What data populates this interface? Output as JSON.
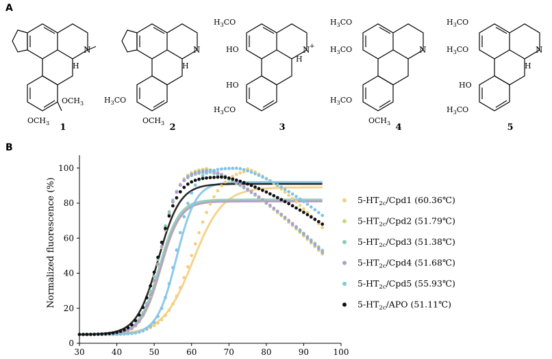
{
  "panels": {
    "a": "A",
    "b": "B"
  },
  "compounds": {
    "labels": [
      "1",
      "2",
      "3",
      "4",
      "5"
    ],
    "substituents": {
      "och3": "OCH",
      "h3co": "H",
      "h3co_tail": "CO",
      "sub3": "3",
      "ho": "HO",
      "n": "N",
      "h": "H",
      "plus": "+"
    }
  },
  "chart_data": {
    "type": "scatter",
    "title": "",
    "xlabel": "",
    "ylabel": "Normalized fluorescence (%)",
    "xlim": [
      30,
      100
    ],
    "ylim": [
      0,
      105
    ],
    "xticks": [
      30,
      40,
      50,
      60,
      70,
      80,
      90,
      100
    ],
    "yticks": [
      0,
      20,
      40,
      60,
      80,
      100
    ],
    "legend_position": "right",
    "series": [
      {
        "name": "5-HT2c/Cpd1 (60.36℃)",
        "prefix": "5-HT",
        "sub": "2c",
        "suffix": "/Cpd1 (60.36℃)",
        "color": "#f3cf7f",
        "tm": 60.36,
        "slope": 4.0,
        "plateau": 89,
        "peak_x": 74,
        "peak_y": 100,
        "end_y": 66
      },
      {
        "name": "5-HT2c/Cpd2 (51.79℃)",
        "prefix": "5-HT",
        "sub": "2c",
        "suffix": "/Cpd2 (51.79℃)",
        "color": "#c3dc74",
        "tm": 51.79,
        "slope": 2.6,
        "plateau": 81,
        "peak_x": 63,
        "peak_y": 100,
        "end_y": 51
      },
      {
        "name": "5-HT2c/Cpd3 (51.38℃)",
        "prefix": "5-HT",
        "sub": "2c",
        "suffix": "/Cpd3 (51.38℃)",
        "color": "#86ceb0",
        "tm": 51.38,
        "slope": 2.6,
        "plateau": 82,
        "peak_x": 64,
        "peak_y": 98,
        "end_y": 53
      },
      {
        "name": "5-HT2c/Cpd4 (51.68℃)",
        "prefix": "5-HT",
        "sub": "2c",
        "suffix": "/Cpd4 (51.68℃)",
        "color": "#b59ad0",
        "tm": 51.68,
        "slope": 2.6,
        "plateau": 81,
        "peak_x": 64,
        "peak_y": 99,
        "end_y": 52
      },
      {
        "name": "5-HT2c/Cpd5 (55.93℃)",
        "prefix": "5-HT",
        "sub": "2c",
        "suffix": "/Cpd5 (55.93℃)",
        "color": "#82c4e4",
        "tm": 55.93,
        "slope": 2.6,
        "plateau": 92,
        "peak_x": 72,
        "peak_y": 100,
        "end_y": 73
      },
      {
        "name": "5-HT2c/APO (51.11℃)",
        "prefix": "5-HT",
        "sub": "2c",
        "suffix": "/APO (51.11℃)",
        "color": "#111111",
        "tm": 51.11,
        "slope": 2.9,
        "plateau": 91,
        "peak_x": 68,
        "peak_y": 95,
        "end_y": 68
      }
    ]
  }
}
